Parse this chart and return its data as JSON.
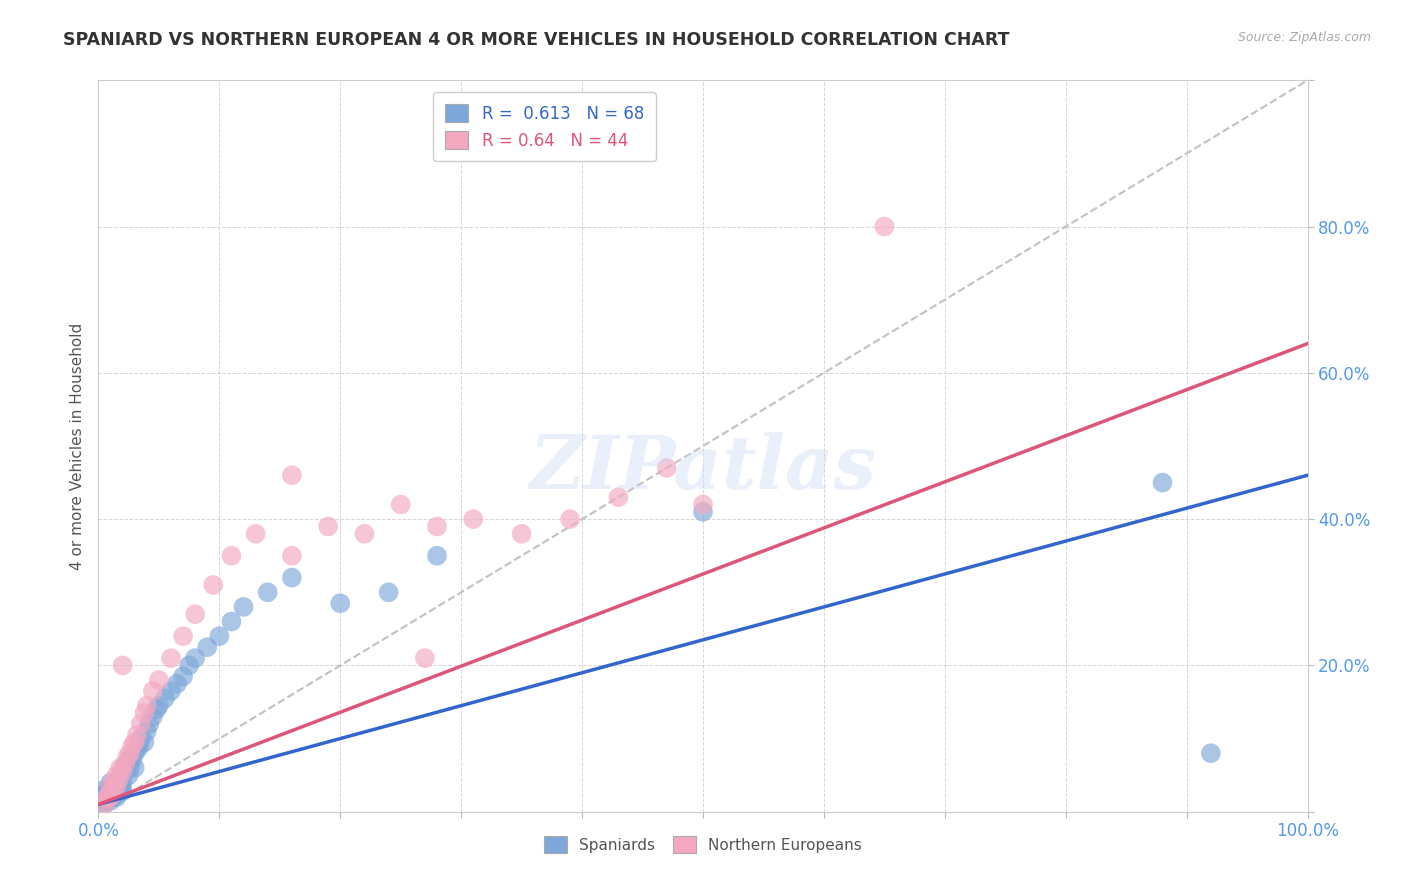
{
  "title": "SPANIARD VS NORTHERN EUROPEAN 4 OR MORE VEHICLES IN HOUSEHOLD CORRELATION CHART",
  "source": "Source: ZipAtlas.com",
  "ylabel": "4 or more Vehicles in Household",
  "xlim": [
    0.0,
    1.0
  ],
  "ylim": [
    0.0,
    1.0
  ],
  "xticks": [
    0.0,
    0.1,
    0.2,
    0.3,
    0.4,
    0.5,
    0.6,
    0.7,
    0.8,
    0.9,
    1.0
  ],
  "yticks": [
    0.0,
    0.2,
    0.4,
    0.6,
    0.8,
    1.0
  ],
  "xticklabels": [
    "0.0%",
    "",
    "",
    "",
    "",
    "",
    "",
    "",
    "",
    "",
    "100.0%"
  ],
  "yticklabels": [
    "",
    "20.0%",
    "40.0%",
    "60.0%",
    "80.0%",
    ""
  ],
  "spaniards_color": "#7da7d9",
  "northern_color": "#f4a8c0",
  "spaniards_R": 0.613,
  "spaniards_N": 68,
  "northern_R": 0.64,
  "northern_N": 44,
  "watermark": "ZIPatlas",
  "background_color": "#ffffff",
  "grid_color": "#cccccc",
  "title_color": "#333333",
  "axis_label_color": "#555555",
  "tick_color": "#5599ee",
  "spaniards_line_color": "#3366cc",
  "northern_line_color": "#dd5577",
  "diagonal_color": "#bbbbbb",
  "sp_line_slope": 0.45,
  "sp_line_intercept": 0.01,
  "ne_line_slope": 0.63,
  "ne_line_intercept": 0.01,
  "spaniards_x": [
    0.005,
    0.005,
    0.005,
    0.005,
    0.007,
    0.007,
    0.008,
    0.008,
    0.009,
    0.009,
    0.01,
    0.01,
    0.01,
    0.01,
    0.012,
    0.012,
    0.013,
    0.013,
    0.015,
    0.015,
    0.015,
    0.016,
    0.016,
    0.017,
    0.017,
    0.018,
    0.018,
    0.019,
    0.019,
    0.02,
    0.02,
    0.021,
    0.022,
    0.023,
    0.025,
    0.025,
    0.026,
    0.027,
    0.028,
    0.03,
    0.03,
    0.032,
    0.034,
    0.035,
    0.038,
    0.04,
    0.042,
    0.045,
    0.048,
    0.05,
    0.055,
    0.06,
    0.065,
    0.07,
    0.075,
    0.08,
    0.09,
    0.1,
    0.11,
    0.12,
    0.14,
    0.16,
    0.2,
    0.24,
    0.28,
    0.5,
    0.88,
    0.92
  ],
  "spaniards_y": [
    0.01,
    0.015,
    0.02,
    0.03,
    0.015,
    0.025,
    0.018,
    0.028,
    0.02,
    0.03,
    0.015,
    0.022,
    0.03,
    0.04,
    0.02,
    0.032,
    0.025,
    0.038,
    0.02,
    0.03,
    0.042,
    0.025,
    0.038,
    0.028,
    0.042,
    0.03,
    0.045,
    0.035,
    0.05,
    0.028,
    0.04,
    0.06,
    0.055,
    0.065,
    0.05,
    0.07,
    0.06,
    0.075,
    0.07,
    0.06,
    0.08,
    0.085,
    0.09,
    0.1,
    0.095,
    0.11,
    0.12,
    0.13,
    0.14,
    0.145,
    0.155,
    0.165,
    0.175,
    0.185,
    0.2,
    0.21,
    0.225,
    0.24,
    0.26,
    0.28,
    0.3,
    0.32,
    0.285,
    0.3,
    0.35,
    0.41,
    0.45,
    0.08
  ],
  "northern_x": [
    0.005,
    0.007,
    0.008,
    0.01,
    0.01,
    0.012,
    0.013,
    0.015,
    0.015,
    0.017,
    0.018,
    0.02,
    0.022,
    0.024,
    0.026,
    0.028,
    0.03,
    0.032,
    0.035,
    0.038,
    0.04,
    0.045,
    0.05,
    0.06,
    0.07,
    0.08,
    0.095,
    0.11,
    0.13,
    0.16,
    0.19,
    0.22,
    0.25,
    0.28,
    0.31,
    0.35,
    0.39,
    0.43,
    0.47,
    0.5,
    0.16,
    0.02,
    0.27,
    0.65
  ],
  "northern_y": [
    0.01,
    0.018,
    0.022,
    0.02,
    0.035,
    0.03,
    0.042,
    0.035,
    0.05,
    0.045,
    0.06,
    0.055,
    0.065,
    0.075,
    0.08,
    0.09,
    0.095,
    0.105,
    0.12,
    0.135,
    0.145,
    0.165,
    0.18,
    0.21,
    0.24,
    0.27,
    0.31,
    0.35,
    0.38,
    0.35,
    0.39,
    0.38,
    0.42,
    0.39,
    0.4,
    0.38,
    0.4,
    0.43,
    0.47,
    0.42,
    0.46,
    0.2,
    0.21,
    0.8
  ]
}
